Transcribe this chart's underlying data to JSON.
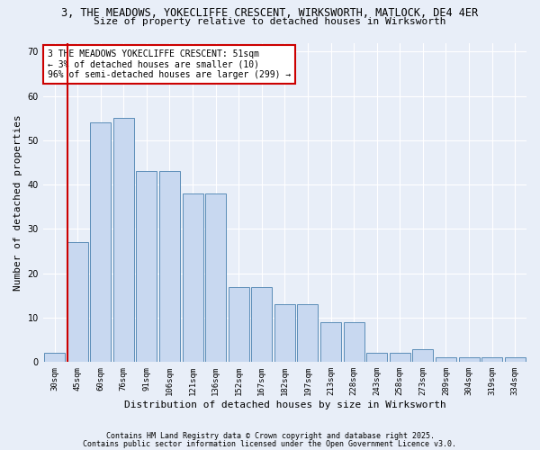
{
  "title1": "3, THE MEADOWS, YOKECLIFFE CRESCENT, WIRKSWORTH, MATLOCK, DE4 4ER",
  "title2": "Size of property relative to detached houses in Wirksworth",
  "xlabel": "Distribution of detached houses by size in Wirksworth",
  "ylabel": "Number of detached properties",
  "categories": [
    "30sqm",
    "45sqm",
    "60sqm",
    "76sqm",
    "91sqm",
    "106sqm",
    "121sqm",
    "136sqm",
    "152sqm",
    "167sqm",
    "182sqm",
    "197sqm",
    "213sqm",
    "228sqm",
    "243sqm",
    "258sqm",
    "273sqm",
    "289sqm",
    "304sqm",
    "319sqm",
    "334sqm"
  ],
  "values": [
    2,
    27,
    54,
    55,
    43,
    43,
    38,
    38,
    17,
    17,
    13,
    13,
    9,
    9,
    2,
    2,
    3,
    1,
    1,
    1,
    1
  ],
  "bar_color": "#c8d8f0",
  "bar_edge_color": "#5b8db8",
  "redline_index": 1,
  "annotation_text": "3 THE MEADOWS YOKECLIFFE CRESCENT: 51sqm\n← 3% of detached houses are smaller (10)\n96% of semi-detached houses are larger (299) →",
  "annotation_box_color": "#ffffff",
  "annotation_box_edge": "#cc0000",
  "redline_color": "#cc0000",
  "ylim": [
    0,
    72
  ],
  "yticks": [
    0,
    10,
    20,
    30,
    40,
    50,
    60,
    70
  ],
  "footnote1": "Contains HM Land Registry data © Crown copyright and database right 2025.",
  "footnote2": "Contains public sector information licensed under the Open Government Licence v3.0.",
  "background_color": "#e8eef8",
  "grid_color": "#ffffff",
  "title1_fontsize": 8.5,
  "title2_fontsize": 8,
  "axis_ylabel_fontsize": 8,
  "axis_xlabel_fontsize": 8,
  "tick_fontsize": 6.5,
  "footnote_fontsize": 6,
  "annot_fontsize": 7
}
